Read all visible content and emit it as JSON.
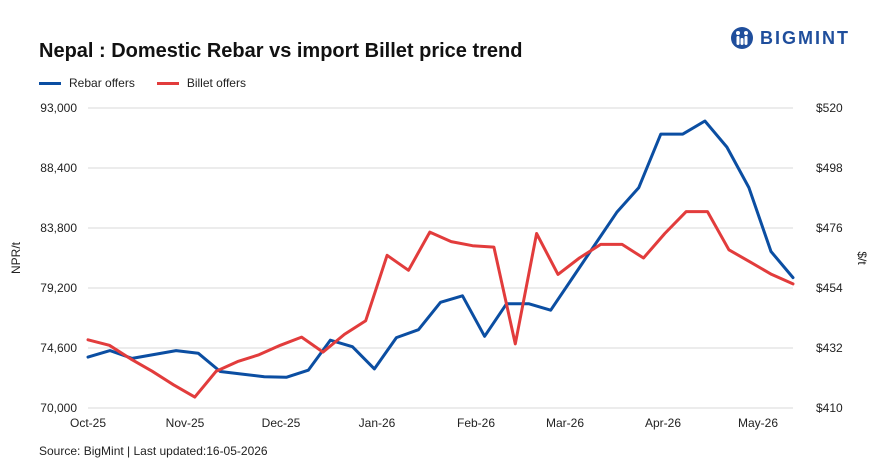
{
  "title": "Nepal : Domestic Rebar vs import Billet price trend",
  "logo": {
    "text": "BIGMINT",
    "icon": "bigmint-logo-icon",
    "color": "#1f4e9c"
  },
  "source": "Source: BigMint | Last updated:16-05-2026",
  "chart_data": {
    "type": "line",
    "legend_position": "top-left",
    "grid": true,
    "x_labels": [
      "Oct-25",
      "Nov-25",
      "Dec-25",
      "Jan-26",
      "Feb-26",
      "Mar-26",
      "Apr-26",
      "May-26"
    ],
    "y_left": {
      "label": "NPR/t",
      "range": [
        70000,
        93000
      ],
      "ticks": [
        70000,
        74600,
        79200,
        83800,
        88400,
        93000
      ],
      "tick_labels": [
        "70,000",
        "74,600",
        "79,200",
        "83,800",
        "88,400",
        "93,000"
      ]
    },
    "y_right": {
      "label": "$/t",
      "range": [
        410,
        520
      ],
      "ticks": [
        410,
        432,
        454,
        476,
        498,
        520
      ],
      "tick_labels": [
        "$410",
        "$432",
        "$454",
        "$476",
        "$498",
        "$520"
      ]
    },
    "series": [
      {
        "name": "Rebar offers",
        "axis": "left",
        "color": "#0b4ea2",
        "values": [
          73900,
          74400,
          73800,
          74100,
          74400,
          74200,
          72800,
          72600,
          72400,
          72350,
          72900,
          75200,
          74700,
          73000,
          75400,
          76000,
          78100,
          78600,
          75500,
          78000,
          78000,
          77500,
          80000,
          82500,
          85000,
          86900,
          91000,
          91000,
          92000,
          90000,
          86900,
          82000,
          80000
        ]
      },
      {
        "name": "Billet offers",
        "axis": "right",
        "color": "#e23c3c",
        "values": [
          435,
          433,
          428,
          423.5,
          418.5,
          414,
          423.5,
          427,
          429.5,
          433,
          436,
          430.5,
          437,
          442,
          466,
          460.5,
          474.5,
          471,
          469.5,
          469,
          433.5,
          474,
          459,
          465,
          470,
          470,
          465,
          474,
          482,
          482,
          468,
          463.5,
          459,
          455.5
        ]
      }
    ]
  }
}
